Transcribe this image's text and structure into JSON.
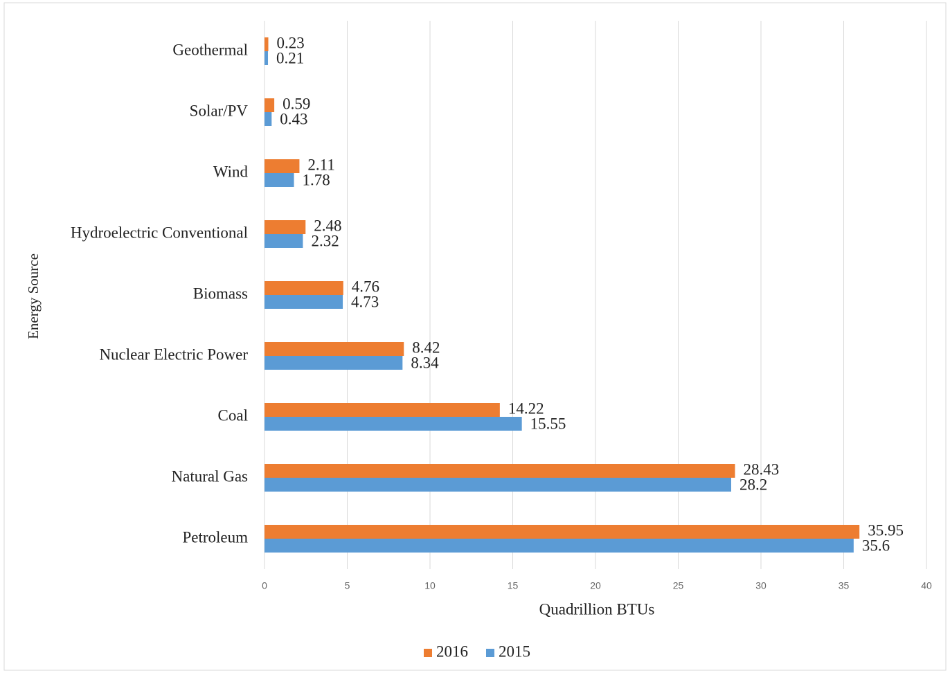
{
  "chart_data": {
    "type": "barh",
    "categories": [
      "Geothermal",
      "Solar/PV",
      "Wind",
      "Hydroelectric Conventional",
      "Biomass",
      "Nuclear Electric Power",
      "Coal",
      "Natural Gas",
      "Petroleum"
    ],
    "series": [
      {
        "name": "2016",
        "color": "#ed7d31",
        "values": [
          0.23,
          0.59,
          2.11,
          2.48,
          4.76,
          8.42,
          14.22,
          28.43,
          35.95
        ]
      },
      {
        "name": "2015",
        "color": "#5b9bd5",
        "values": [
          0.21,
          0.43,
          1.78,
          2.32,
          4.73,
          8.34,
          15.55,
          28.2,
          35.6
        ]
      }
    ],
    "xlabel": "Quadrillion  BTUs",
    "ylabel": "Energy  Source",
    "xlim": [
      0,
      40
    ],
    "xticks": [
      0,
      5,
      10,
      15,
      20,
      25,
      30,
      35,
      40
    ],
    "grid": true,
    "legend": "bottom"
  }
}
